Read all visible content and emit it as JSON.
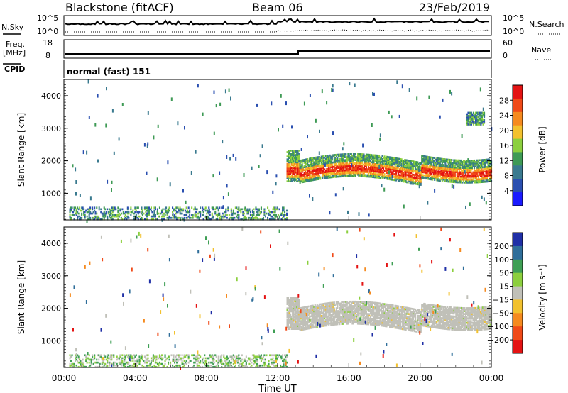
{
  "header": {
    "title": "Blackstone (fitACF)",
    "beam": "Beam 06",
    "date": "23/Feb/2019"
  },
  "strips": {
    "nsky_label": "N.Sky",
    "nsearch_label": "N.Search",
    "noise_ticks": [
      "10^5",
      "10^0"
    ],
    "freq_label": "Freq.",
    "freq_unit": "[MHz]",
    "freq_ticks": [
      "18",
      "8"
    ],
    "nave_label": "Nave",
    "nave_ticks": [
      "60",
      "0"
    ],
    "cpid_label": "CPID",
    "cpid_value": "normal (fast) 151"
  },
  "chart_data": [
    {
      "type": "heatmap",
      "panel": "power",
      "ylabel": "Slant Range [km]",
      "xlabel": "",
      "yticks": [
        "1000",
        "2000",
        "3000",
        "4000"
      ],
      "ylim": [
        180,
        4500
      ],
      "xlim": [
        0,
        24
      ],
      "colorbar": {
        "label": "Power [dB]",
        "ticks": [
          "4",
          "8",
          "12",
          "16",
          "20",
          "24",
          "28"
        ],
        "range": [
          0,
          32
        ],
        "colors": [
          "#1a1aff",
          "#2a4fb0",
          "#3a7a8f",
          "#3e9a55",
          "#8ccf3e",
          "#f2c12e",
          "#f58a1f",
          "#f04a18",
          "#e41313"
        ]
      },
      "features": [
        {
          "name": "main echo band",
          "start_ut": 12.5,
          "end_ut": 24,
          "range_km": [
            1100,
            2300
          ],
          "power_db": [
            12,
            30
          ]
        },
        {
          "name": "ground scatter near range",
          "start_ut": 0.3,
          "end_ut": 12.5,
          "range_km": [
            180,
            550
          ],
          "power_db": [
            4,
            28
          ]
        },
        {
          "name": "late echoes",
          "start_ut": 22.6,
          "end_ut": 23.6,
          "range_km": [
            3100,
            3500
          ],
          "power_db": [
            4,
            16
          ]
        }
      ]
    },
    {
      "type": "heatmap",
      "panel": "velocity",
      "ylabel": "Slant Range [km]",
      "xlabel": "Time UT",
      "yticks": [
        "1000",
        "2000",
        "3000",
        "4000"
      ],
      "xticks": [
        "00:00",
        "04:00",
        "08:00",
        "12:00",
        "16:00",
        "20:00",
        "00:00"
      ],
      "ylim": [
        180,
        4500
      ],
      "xlim": [
        0,
        24
      ],
      "colorbar": {
        "label": "Velocity [m s⁻¹]",
        "ticks": [
          "200",
          "100",
          "50",
          "15",
          "−15",
          "−50",
          "−100",
          "−200"
        ],
        "range": [
          -250,
          250
        ],
        "colors": [
          "#1f2fa6",
          "#2f6e9a",
          "#3f9f55",
          "#8ccf3e",
          "#c0c0b8",
          "#f2c12e",
          "#f58a1f",
          "#f04a18",
          "#e41313"
        ]
      },
      "features": [
        {
          "name": "ground scatter band",
          "start_ut": 12.5,
          "end_ut": 24,
          "range_km": [
            1100,
            2200
          ],
          "velocity_ms": [
            -15,
            15
          ]
        },
        {
          "name": "near-range echoes",
          "start_ut": 0.3,
          "end_ut": 12.5,
          "range_km": [
            180,
            550
          ],
          "velocity_ms": [
            15,
            100
          ]
        }
      ]
    }
  ]
}
